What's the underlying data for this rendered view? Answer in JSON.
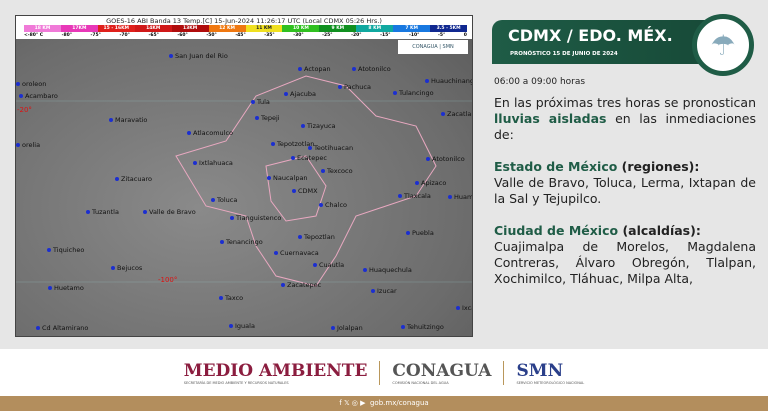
{
  "map": {
    "title": "GOES-16 ABI Banda 13 Temp.[C] 15-Jun-2024 11:26:17 UTC (Local CDMX  05:26 Hrs.)",
    "colorbar": [
      {
        "label": "18 KM",
        "color": "#f07ad8"
      },
      {
        "label": "17KM",
        "color": "#e838b8"
      },
      {
        "label": "15 - 16KM",
        "color": "#e0201c"
      },
      {
        "label": "14KM",
        "color": "#d01818"
      },
      {
        "label": "13KM",
        "color": "#b00c0c"
      },
      {
        "label": "12 KM",
        "color": "#f07810"
      },
      {
        "label": "11 KM",
        "color": "#f0e020"
      },
      {
        "label": "10 KM",
        "color": "#30c020"
      },
      {
        "label": "9 KM",
        "color": "#109020"
      },
      {
        "label": "8 KM",
        "color": "#10a8a0"
      },
      {
        "label": "7 KM",
        "color": "#1878e0"
      },
      {
        "label": "3.5 - 5KM",
        "color": "#102890"
      }
    ],
    "ticks": [
      "<-80° C",
      "-80°",
      "-75°",
      "-70°",
      "-65°",
      "-60°",
      "-50°",
      "-45°",
      "-35°",
      "-30°",
      "-25°",
      "-20°",
      "-15°",
      "-10°",
      "-5°",
      "0"
    ],
    "logo": "CONAGUA | SMN",
    "places": [
      "San Juan del Rio",
      "Actopan",
      "Atotonilco",
      "Huauchinango",
      "Acambaro",
      "Pachuca",
      "Tulancingo",
      "Zacatlan",
      "Maravatio",
      "Tula",
      "Ajacuba",
      "Tepeji",
      "Tizayuca",
      "Atlacomulco",
      "Tepotzotlan",
      "Teotihuacan",
      "Atotonilco",
      "Ixtlahuaca",
      "Ecatepec",
      "Texcoco",
      "Zitacuaro",
      "Naucalpan",
      "CDMX",
      "Apizaco",
      "Tlaxcala",
      "Huama",
      "Toluca",
      "Chalco",
      "Tuzantla",
      "Valle de Bravo",
      "Tianguistenco",
      "Puebla",
      "Tenancingo",
      "Tepoztlan",
      "Cuernavaca",
      "Tiquicheo",
      "Bejucos",
      "Cuautla",
      "Huaquechula",
      "Huetamo",
      "Zacatepec",
      "Izucar",
      "Taxco",
      "Cd Altamirano",
      "Iguala",
      "Jolalpan",
      "Tehuitzingo",
      "Ixca",
      "oroleon",
      "orelia"
    ],
    "coords": [
      "-20°",
      "-100°"
    ]
  },
  "banner": {
    "title": "CDMX / EDO. MÉX.",
    "subtitle": "PRONÓSTICO 15 DE JUNIO DE 2024",
    "icon": "cloud-rain-icon"
  },
  "forecast": {
    "hours": "06:00 a 09:00 horas",
    "intro1": "En las próximas tres horas se pronostican ",
    "highlight": "lluvias aisladas",
    "intro2": " en las inmediaciones de:",
    "edomex_title": "Estado de México",
    "edomex_suffix": " (regiones):",
    "edomex_text": "Valle de Bravo, Toluca, Lerma, Ixtapan de la Sal y Tejupilco.",
    "cdmx_title": "Ciudad de México",
    "cdmx_suffix": " (alcaldías):",
    "cdmx_text": "Cuajimalpa de Morelos, Magdalena Contreras, Álvaro Obregón, Tlalpan, Xochimilco, Tláhuac, Milpa Alta,"
  },
  "logos": {
    "medio": "MEDIO AMBIENTE",
    "medio_sub": "SECRETARÍA DE MEDIO AMBIENTE Y RECURSOS NATURALES",
    "conagua": "CONAGUA",
    "conagua_sub": "COMISIÓN NACIONAL DEL AGUA",
    "smn": "SMN",
    "smn_sub": "SERVICIO METEOROLÓGICO NACIONAL"
  },
  "footer": {
    "social": "f 𝕏 ◎ ▶",
    "url": "gob.mx/conagua"
  }
}
